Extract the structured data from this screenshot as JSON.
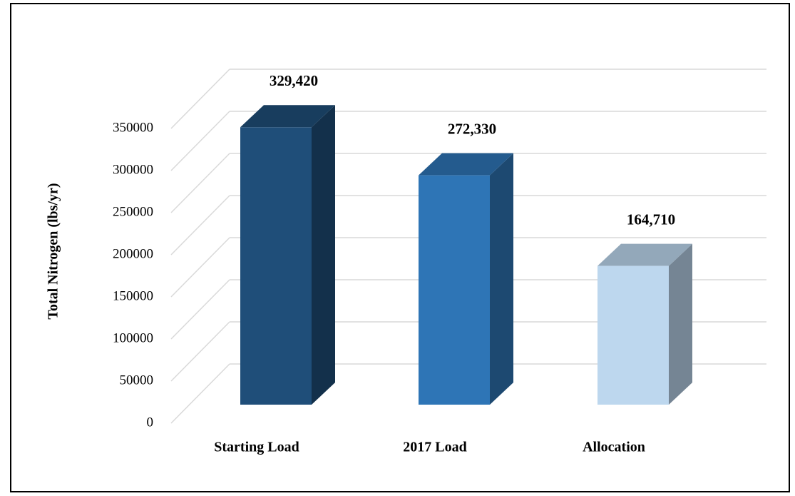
{
  "chart_data": {
    "type": "bar",
    "ylabel": "Total Nitrogen (lbs/yr)",
    "categories": [
      "Starting Load",
      "2017 Load",
      "Allocation"
    ],
    "values": [
      329420,
      272330,
      164710
    ],
    "value_labels": [
      "329,420",
      "272,330",
      "164,710"
    ],
    "colors": [
      "#1f4e79",
      "#2e75b6",
      "#bdd7ee"
    ],
    "ylim": [
      0,
      350000
    ],
    "yticks": [
      0,
      50000,
      100000,
      150000,
      200000,
      250000,
      300000,
      350000
    ],
    "grid": true
  }
}
